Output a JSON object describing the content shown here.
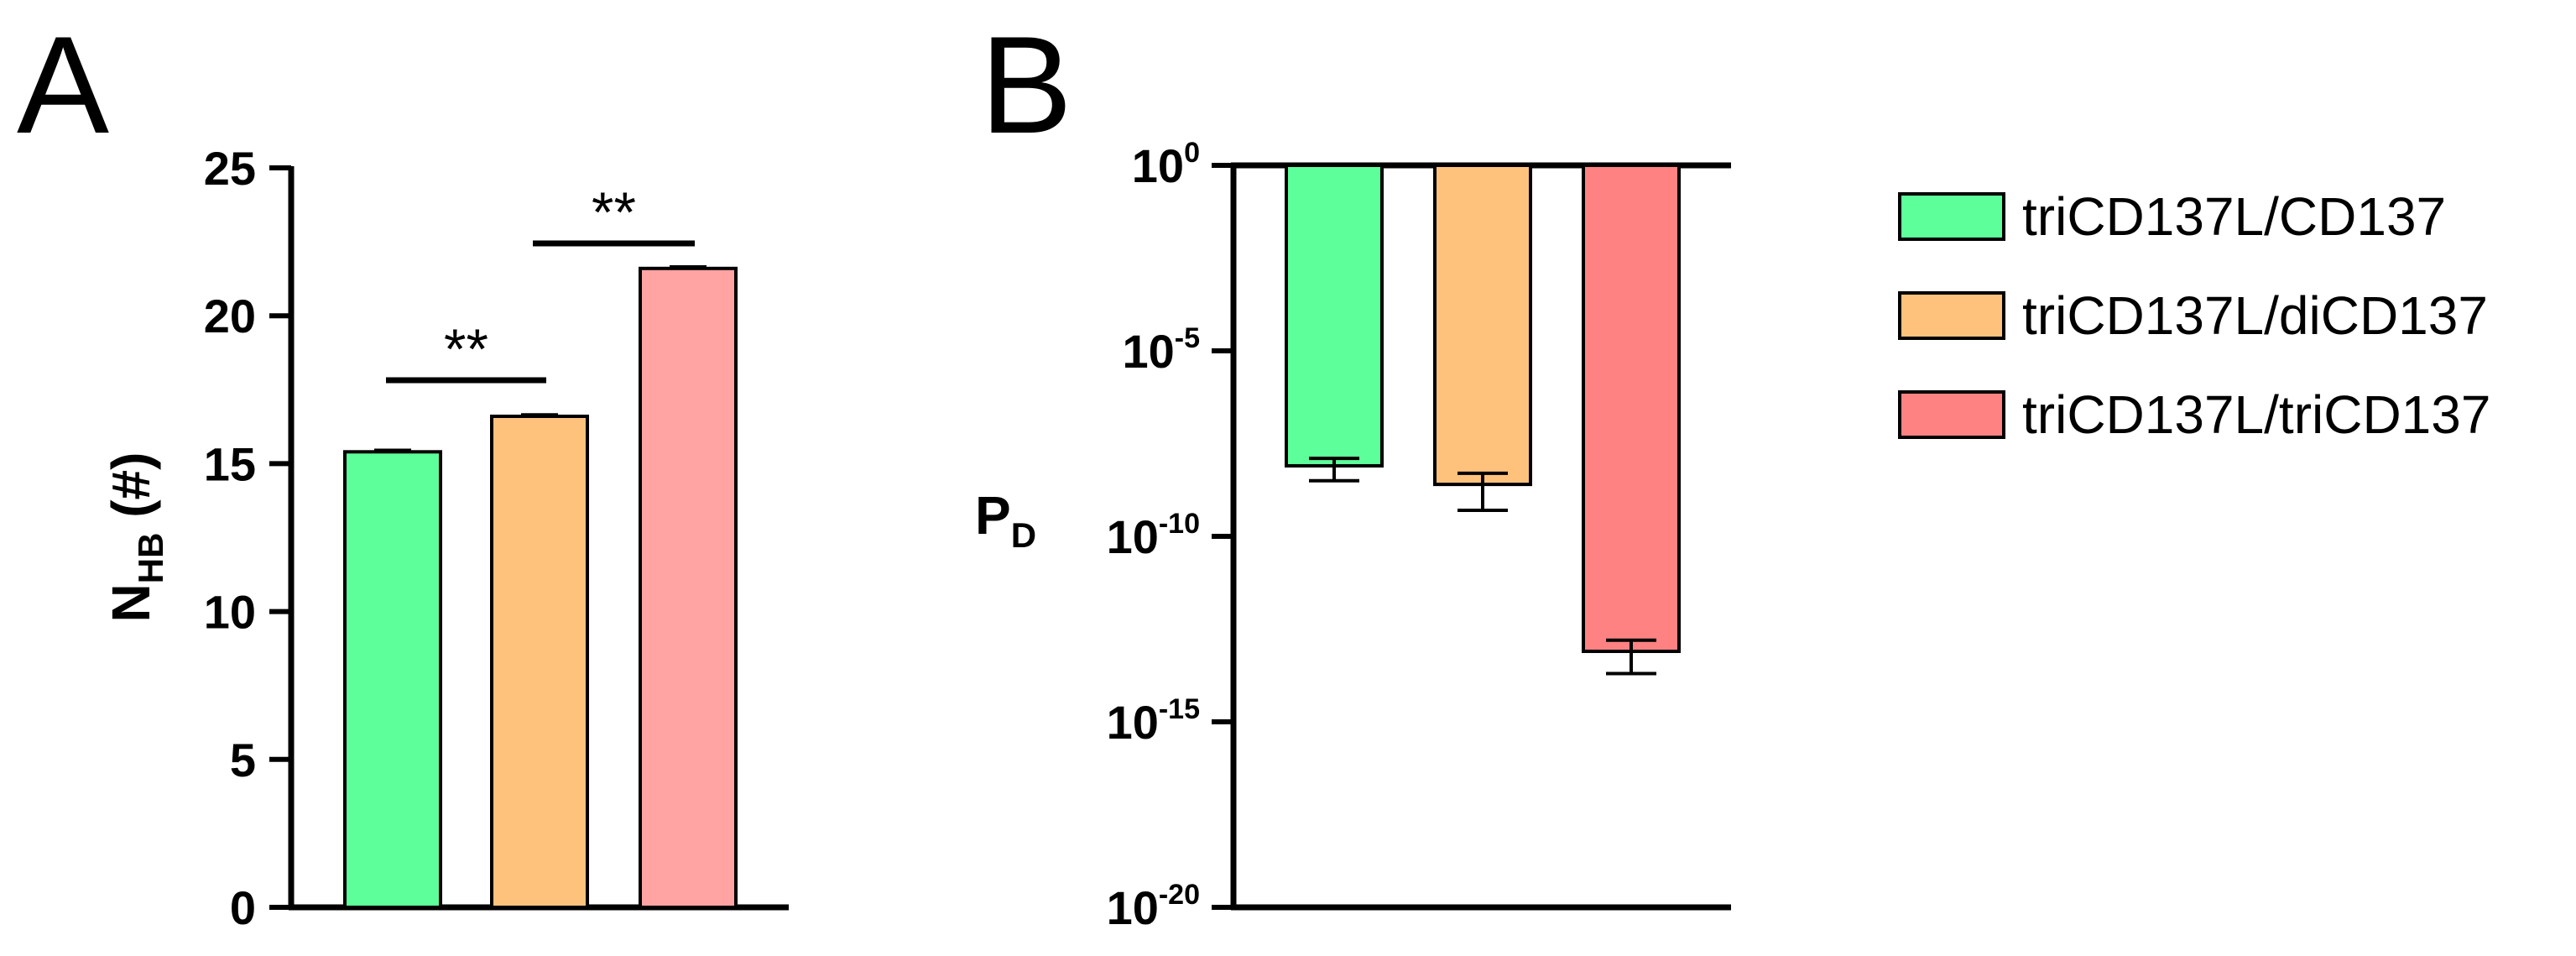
{
  "panels": {
    "a_label": "A",
    "b_label": "B"
  },
  "colors": {
    "green": "#5cff9a",
    "orange": "#ffc27d",
    "red_a": "#ffa3a3",
    "red_b": "#ff8282"
  },
  "legend": [
    {
      "label": "triCD137L/CD137",
      "color": "#5cff9a"
    },
    {
      "label": "triCD137L/diCD137",
      "color": "#ffc27d"
    },
    {
      "label": "triCD137L/triCD137",
      "color": "#ff8282"
    }
  ],
  "chart_data": [
    {
      "type": "bar",
      "panel": "A",
      "ylabel_main": "N",
      "ylabel_sub": "HB",
      "ylabel_suffix": "(#)",
      "ylim": [
        0,
        25
      ],
      "yticks": [
        0,
        5,
        10,
        15,
        20,
        25
      ],
      "categories": [
        "triCD137L/CD137",
        "triCD137L/diCD137",
        "triCD137L/triCD137"
      ],
      "values": [
        15.4,
        16.6,
        21.6
      ],
      "errors": [
        0.05,
        0.05,
        0.05
      ],
      "significance": [
        {
          "from": 0,
          "to": 1,
          "label": "**"
        },
        {
          "from": 1,
          "to": 2,
          "label": "**"
        }
      ]
    },
    {
      "type": "bar",
      "panel": "B",
      "ylabel_main": "P",
      "ylabel_sub": "D",
      "yscale": "log",
      "ylim_exponent": [
        -20,
        0
      ],
      "yticks": [
        {
          "base": "10",
          "exp": "0"
        },
        {
          "base": "10",
          "exp": "-5"
        },
        {
          "base": "10",
          "exp": "-10"
        },
        {
          "base": "10",
          "exp": "-15"
        },
        {
          "base": "10",
          "exp": "-20"
        }
      ],
      "categories": [
        "triCD137L/CD137",
        "triCD137L/diCD137",
        "triCD137L/triCD137"
      ],
      "log10_values": [
        -8.1,
        -8.6,
        -13.1
      ],
      "log10_err_low": [
        -8.5,
        -9.3,
        -13.7
      ],
      "log10_err_high": [
        -7.9,
        -8.3,
        -12.8
      ]
    }
  ]
}
